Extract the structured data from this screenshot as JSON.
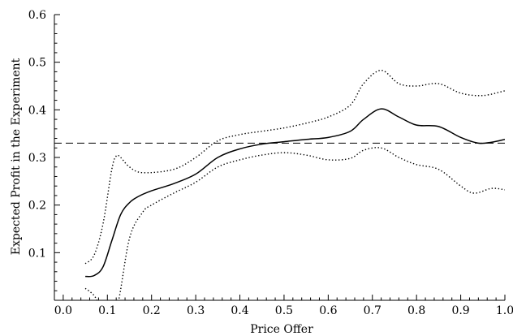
{
  "chart_data": {
    "type": "line",
    "xlabel": "Price Offer",
    "ylabel": "Expected Profit in the Experiment",
    "xlim": [
      -0.02,
      1.0
    ],
    "ylim": [
      0.0,
      0.6
    ],
    "x_ticks": [
      0.0,
      0.1,
      0.2,
      0.3,
      0.4,
      0.5,
      0.6,
      0.7,
      0.8,
      0.9,
      1.0
    ],
    "x_tick_labels": [
      "0.0",
      "0.1",
      "0.2",
      "0.3",
      "0.4",
      "0.5",
      "0.6",
      "0.7",
      "0.8",
      "0.9",
      "1.0"
    ],
    "y_ticks": [
      0.1,
      0.2,
      0.3,
      0.4,
      0.5,
      0.6
    ],
    "y_tick_labels": [
      "0.1",
      "0.2",
      "0.3",
      "0.4",
      "0.5",
      "0.6"
    ],
    "grid": false,
    "legend": "none",
    "series": [
      {
        "style": "solid",
        "x": [
          0.05,
          0.07,
          0.09,
          0.11,
          0.13,
          0.15,
          0.17,
          0.2,
          0.25,
          0.3,
          0.35,
          0.4,
          0.45,
          0.5,
          0.55,
          0.6,
          0.65,
          0.68,
          0.72,
          0.76,
          0.8,
          0.85,
          0.9,
          0.94,
          0.97,
          1.0
        ],
        "y": [
          0.05,
          0.052,
          0.07,
          0.125,
          0.18,
          0.205,
          0.218,
          0.23,
          0.245,
          0.265,
          0.3,
          0.318,
          0.328,
          0.333,
          0.338,
          0.342,
          0.355,
          0.38,
          0.402,
          0.385,
          0.368,
          0.365,
          0.342,
          0.33,
          0.332,
          0.338
        ]
      },
      {
        "style": "dotted",
        "x": [
          0.05,
          0.07,
          0.09,
          0.11,
          0.12,
          0.13,
          0.15,
          0.18,
          0.25,
          0.3,
          0.35,
          0.4,
          0.45,
          0.5,
          0.55,
          0.6,
          0.65,
          0.68,
          0.72,
          0.76,
          0.8,
          0.85,
          0.9,
          0.95,
          1.0
        ],
        "y": [
          0.077,
          0.095,
          0.16,
          0.275,
          0.303,
          0.3,
          0.28,
          0.268,
          0.275,
          0.3,
          0.335,
          0.348,
          0.355,
          0.362,
          0.372,
          0.385,
          0.41,
          0.455,
          0.483,
          0.455,
          0.45,
          0.455,
          0.435,
          0.43,
          0.44
        ]
      },
      {
        "style": "dotted",
        "x": [
          0.05,
          0.07,
          0.09,
          0.12,
          0.15,
          0.18,
          0.2,
          0.25,
          0.3,
          0.35,
          0.4,
          0.45,
          0.5,
          0.55,
          0.6,
          0.65,
          0.68,
          0.72,
          0.76,
          0.8,
          0.85,
          0.9,
          0.93,
          0.97,
          1.0
        ],
        "y": [
          0.025,
          0.01,
          -0.02,
          -0.02,
          0.13,
          0.185,
          0.2,
          0.225,
          0.248,
          0.28,
          0.295,
          0.305,
          0.31,
          0.305,
          0.295,
          0.298,
          0.315,
          0.32,
          0.3,
          0.285,
          0.275,
          0.24,
          0.225,
          0.235,
          0.232
        ]
      }
    ],
    "reference_lines": [
      {
        "orientation": "horizontal",
        "y": 0.33,
        "style": "dashed"
      }
    ]
  }
}
